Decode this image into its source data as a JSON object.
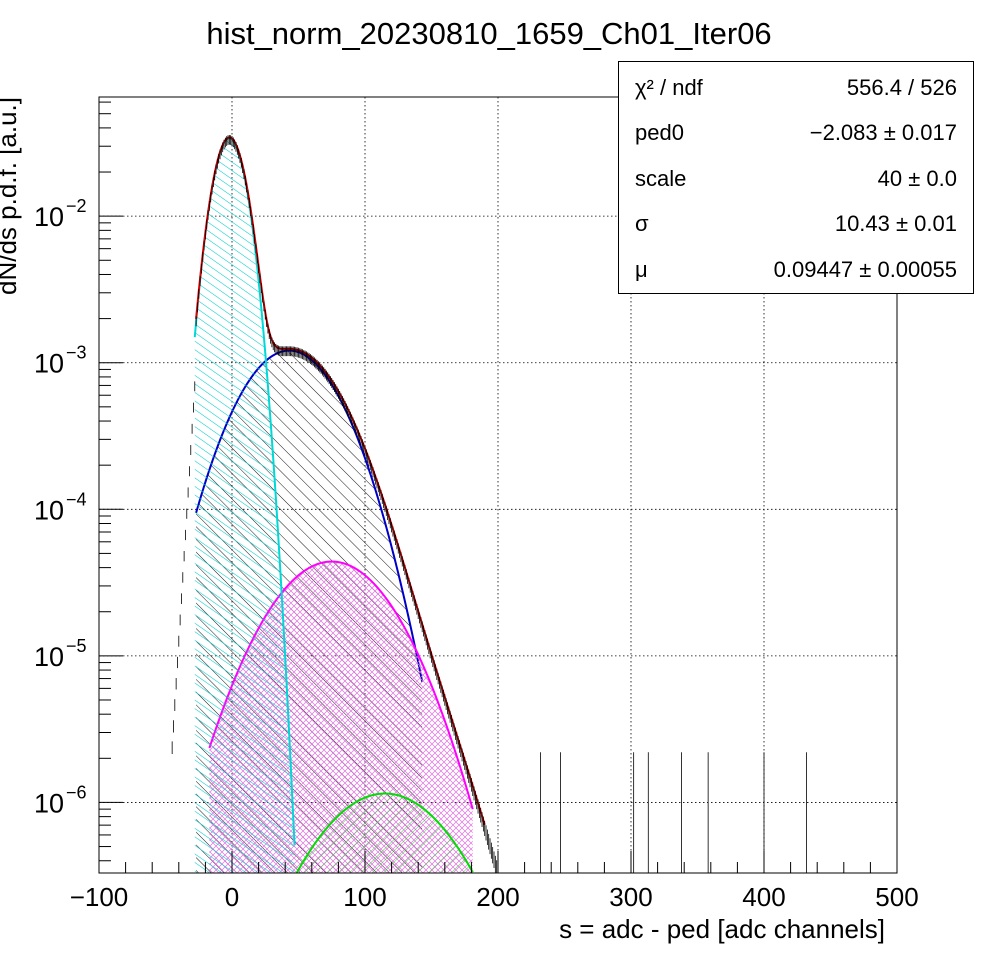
{
  "chart_data": {
    "type": "histogram",
    "title": "hist_norm_20230810_1659_Ch01_Iter06",
    "xlabel": "s = adc - ped [adc channels]",
    "ylabel": "dN/ds p.d.f. [a.u.]",
    "xlim": [
      -100,
      500
    ],
    "ylim": [
      3.3e-07,
      0.065
    ],
    "yscale": "log",
    "grid": true,
    "x_ticks": [
      "−100",
      "0",
      "100",
      "200",
      "300",
      "400",
      "500"
    ],
    "x_tick_values": [
      -100,
      0,
      100,
      200,
      300,
      400,
      500
    ],
    "y_ticks": [
      {
        "base": "10",
        "exp": "−2",
        "value": 0.01
      },
      {
        "base": "10",
        "exp": "−3",
        "value": 0.001
      },
      {
        "base": "10",
        "exp": "−4",
        "value": 0.0001
      },
      {
        "base": "10",
        "exp": "−5",
        "value": 1e-05
      },
      {
        "base": "10",
        "exp": "−6",
        "value": 1e-06
      }
    ],
    "components": [
      {
        "color": "#00d8d8",
        "peak_x": -2,
        "peak_y": 0.034,
        "sigma": 10.4,
        "x_range": [
          -28,
          47
        ],
        "hatch": "cyan-diagonal"
      },
      {
        "color": "#0000c8",
        "peak_x": 43,
        "peak_y": 0.00121,
        "sigma": 31,
        "x_range": [
          -27,
          143
        ],
        "hatch": "black-diagonal"
      },
      {
        "color": "#ff00ff",
        "peak_x": 75,
        "peak_y": 4.4e-05,
        "sigma": 38,
        "x_range": [
          -17,
          181
        ],
        "hatch": "magenta-cross"
      },
      {
        "color": "#00dd00",
        "peak_x": 115,
        "peak_y": 1.15e-06,
        "sigma": 42,
        "x_range": [
          48,
          181
        ],
        "hatch": "green"
      }
    ],
    "total_fit_color": "#e00000",
    "histogram_color": "#000000"
  },
  "stats": [
    {
      "label": "χ² / ndf",
      "value": "556.4 / 526"
    },
    {
      "label": "ped0",
      "value": "−2.083 ± 0.017"
    },
    {
      "label": "scale",
      "value": "40 ± 0.0"
    },
    {
      "label": "σ",
      "value": "10.43 ± 0.01"
    },
    {
      "label": "μ",
      "value": "0.09447 ± 0.00055"
    }
  ]
}
